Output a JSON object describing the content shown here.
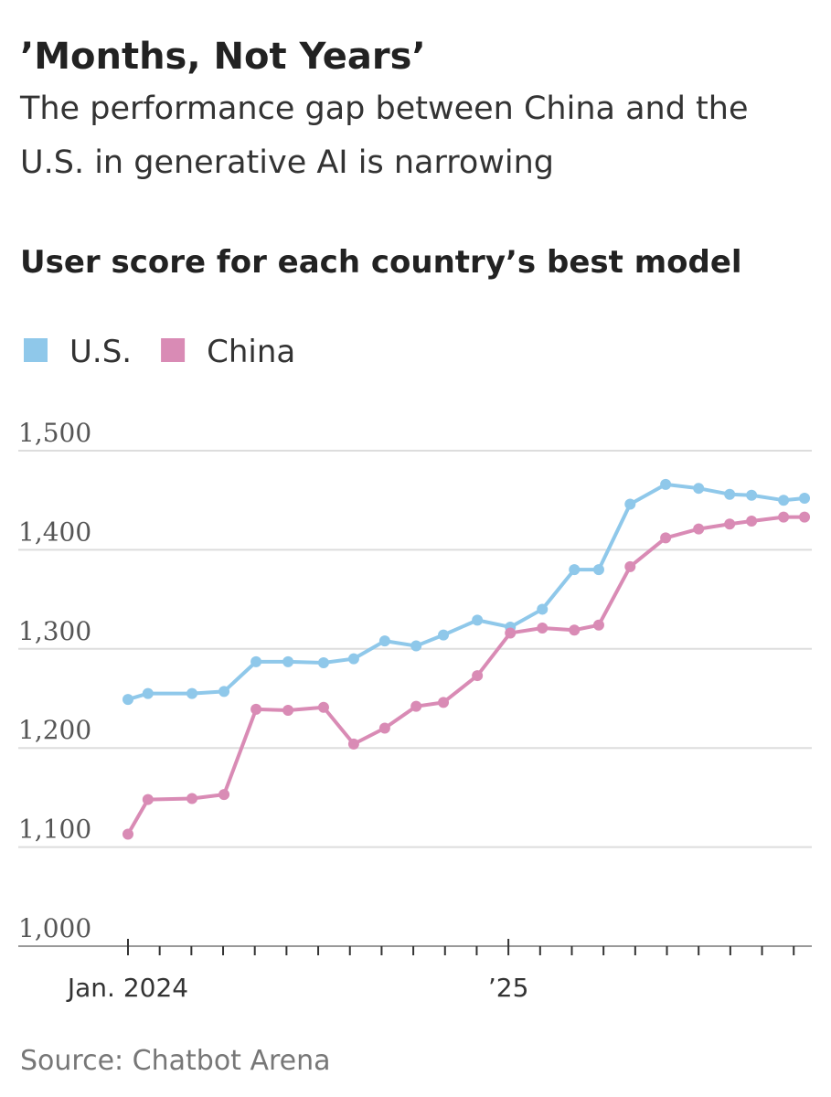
{
  "chart_data": {
    "type": "line",
    "title": "’Months, Not Years’",
    "subtitle": [
      "The performance gap between China and the",
      "U.S. in generative AI is narrowing"
    ],
    "chart_title": "User score for each country’s best model",
    "source": "Source: Chatbot Arena",
    "x": [
      0,
      0.63,
      2.02,
      3.03,
      4.04,
      5.05,
      6.17,
      7.12,
      8.1,
      9.09,
      9.95,
      11.02,
      12.06,
      13.07,
      14.08,
      14.85,
      15.84,
      16.96,
      18,
      18.98,
      19.67,
      20.68,
      21.34
    ],
    "series": [
      {
        "name": "U.S.",
        "color": "#8fc8ea",
        "values": [
          1249,
          1255,
          1255,
          1257,
          1287,
          1287,
          1286,
          1290,
          1308,
          1303,
          1314,
          1329,
          1322,
          1340,
          1380,
          1380,
          1446,
          1466,
          1462,
          1456,
          1455,
          1450,
          1452
        ]
      },
      {
        "name": "China",
        "color": "#d98bb5",
        "values": [
          1113,
          1148,
          1149,
          1153,
          1239,
          1238,
          1241,
          1204,
          1220,
          1242,
          1246,
          1273,
          1316,
          1321,
          1319,
          1324,
          1383,
          1412,
          1421,
          1426,
          1429,
          1433,
          1433
        ]
      }
    ],
    "xlim": [
      -3.46,
      21.57
    ],
    "xticks": [
      0,
      1,
      2,
      3,
      4,
      5,
      6,
      7,
      8,
      9,
      10,
      11,
      12,
      13,
      14,
      15,
      16,
      17,
      18,
      19,
      20,
      21
    ],
    "xtick_labels": [
      {
        "value": 0,
        "label": "Jan. 2024"
      },
      {
        "value": 12,
        "label": "’25"
      }
    ],
    "ylim": [
      1000,
      1500
    ],
    "yticks": [
      {
        "value": 1000,
        "label": "1,000"
      },
      {
        "value": 1100,
        "label": "1,100"
      },
      {
        "value": 1200,
        "label": "1,200"
      },
      {
        "value": 1300,
        "label": "1,300"
      },
      {
        "value": 1400,
        "label": "1,400"
      },
      {
        "value": 1500,
        "label": "1,500"
      }
    ],
    "grid": true,
    "legend": "top-left"
  }
}
